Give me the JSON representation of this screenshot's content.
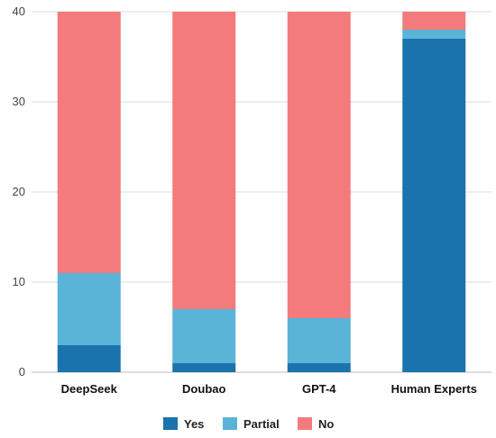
{
  "chart_data": {
    "type": "bar",
    "stacked": true,
    "categories": [
      "DeepSeek",
      "Doubao",
      "GPT-4",
      "Human Experts"
    ],
    "series": [
      {
        "name": "Yes",
        "color": "#1a73ad",
        "values": [
          3,
          1,
          1,
          37
        ]
      },
      {
        "name": "Partial",
        "color": "#5ab4d8",
        "values": [
          8,
          6,
          5,
          1
        ]
      },
      {
        "name": "No",
        "color": "#f47b7c",
        "values": [
          29,
          33,
          34,
          2
        ]
      }
    ],
    "ylim": [
      0,
      40
    ],
    "yticks": [
      0,
      10,
      20,
      30,
      40
    ],
    "grid": true,
    "legend_position": "bottom"
  }
}
